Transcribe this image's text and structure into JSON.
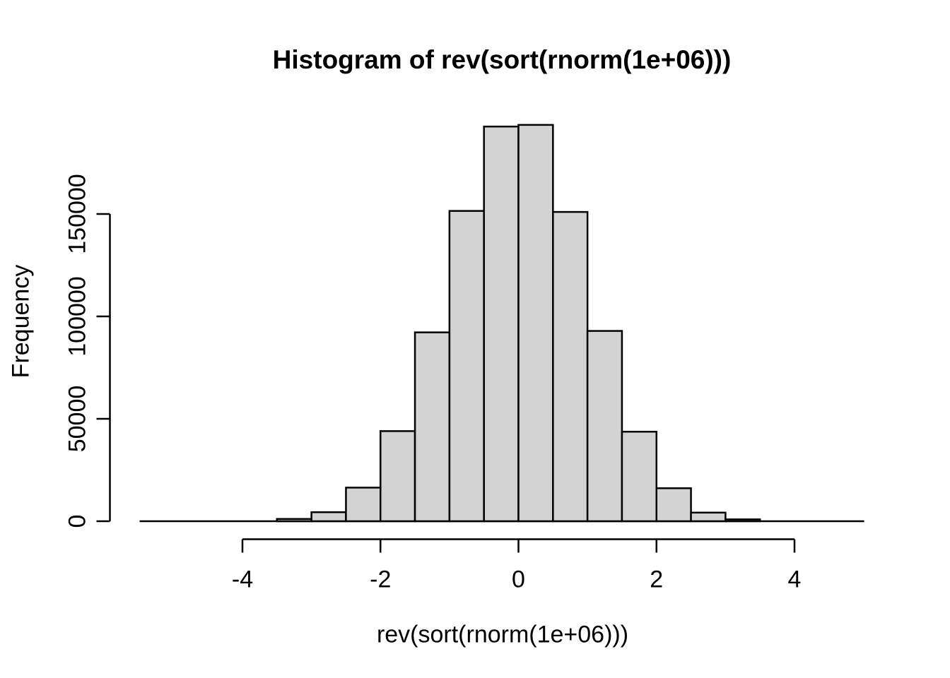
{
  "chart_data": {
    "type": "histogram",
    "title": "Histogram of rev(sort(rnorm(1e+06)))",
    "xlabel": "rev(sort(rnorm(1e+06)))",
    "ylabel": "Frequency",
    "bin_width": 0.5,
    "bin_start": -3.5,
    "bin_edges": [
      -3.5,
      -3,
      -2.5,
      -2,
      -1.5,
      -1,
      -0.5,
      0,
      0.5,
      1,
      1.5,
      2,
      2.5,
      3,
      3.5
    ],
    "counts": [
      1100,
      4400,
      16400,
      44000,
      92200,
      151500,
      192700,
      193500,
      151000,
      92900,
      43700,
      16100,
      4200,
      900
    ],
    "x_ticks": [
      -4,
      -2,
      0,
      2,
      4
    ],
    "x_tick_labels": [
      "-4",
      "-2",
      "0",
      "2",
      "4"
    ],
    "y_ticks": [
      0,
      50000,
      100000,
      150000
    ],
    "y_tick_labels": [
      "0",
      "50000",
      "100000",
      "150000"
    ],
    "baseline_extent": [
      -5.5,
      5.0
    ],
    "ylim": [
      0,
      193500
    ],
    "grid": "off",
    "legend": "none",
    "bar_fill": "#d3d3d3",
    "bar_border": "#000000",
    "axis_color": "#000000",
    "text_color": "#000000",
    "background": "#ffffff"
  }
}
